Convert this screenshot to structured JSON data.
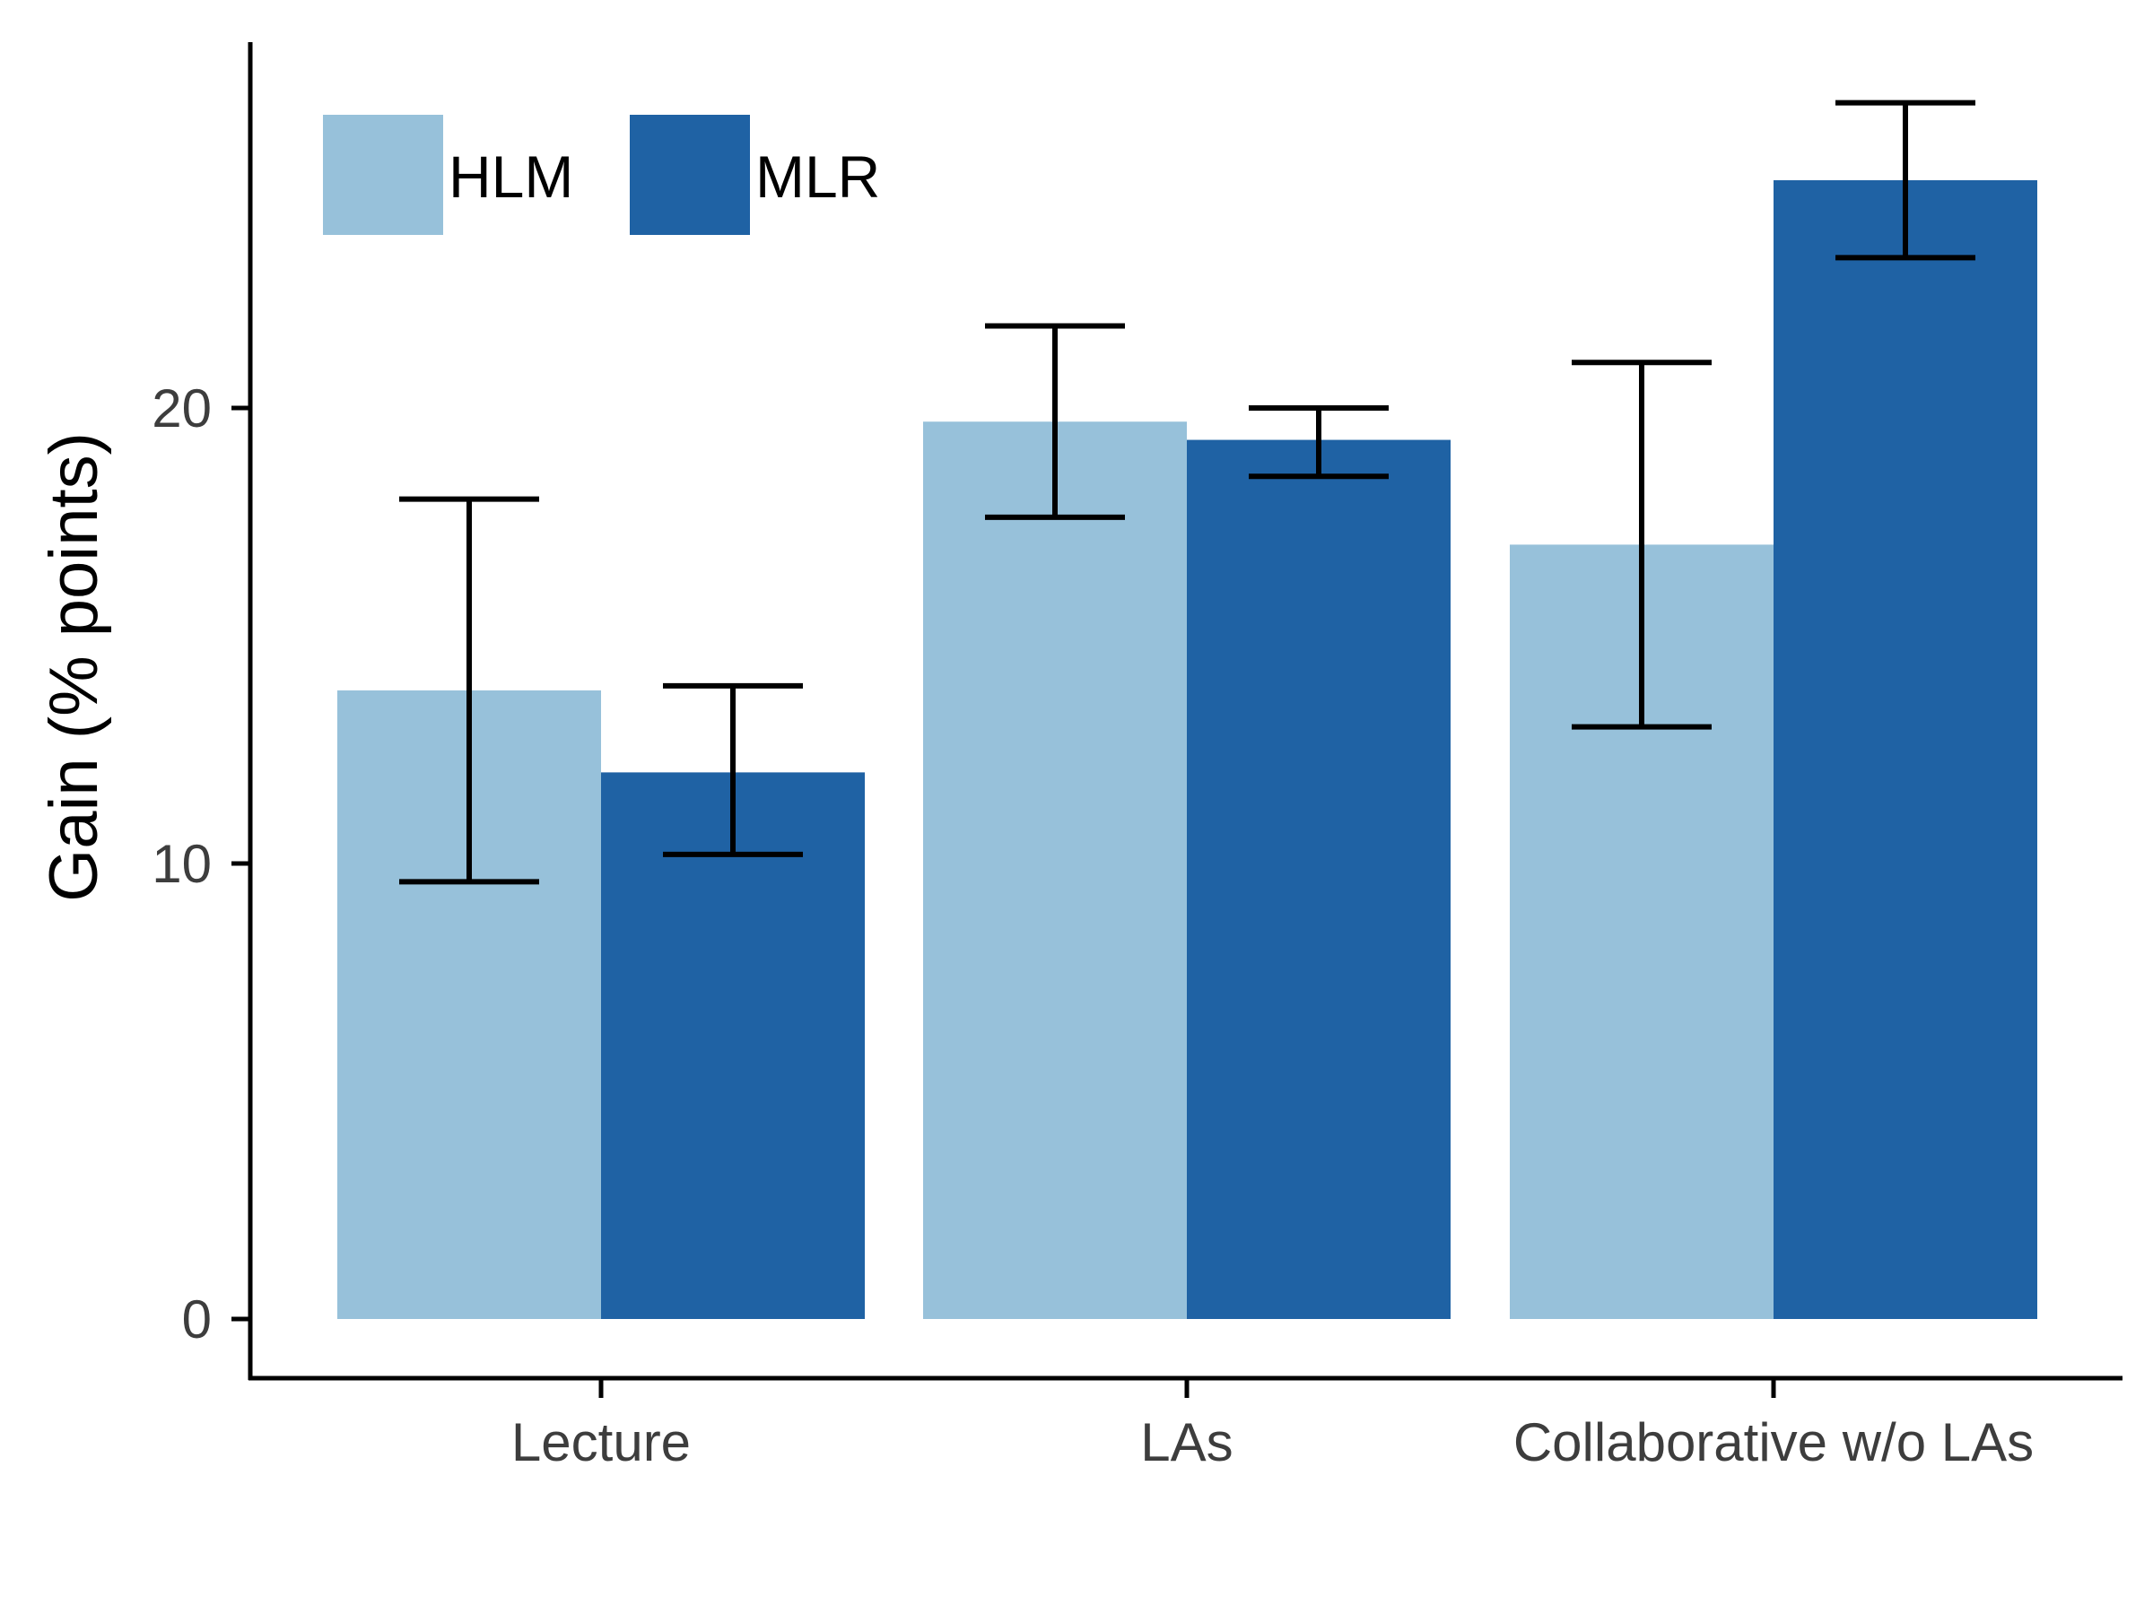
{
  "chart_data": {
    "type": "bar",
    "title": "",
    "xlabel": "",
    "ylabel": "Gain (% points)",
    "ylim": [
      -1.3,
      28.5
    ],
    "yticks": [
      0,
      10,
      20
    ],
    "grid": false,
    "legend_position": "top-left",
    "categories": [
      "Lecture",
      "LAs",
      "Collaborative w/o LAs"
    ],
    "series": [
      {
        "name": "HLM",
        "color": "#97c1da",
        "values": [
          13.8,
          19.7,
          17.0
        ],
        "error_low": [
          9.6,
          17.6,
          13.0
        ],
        "error_high": [
          18.0,
          21.8,
          21.0
        ]
      },
      {
        "name": "MLR",
        "color": "#1f62a4",
        "values": [
          12.0,
          19.3,
          25.0
        ],
        "error_low": [
          10.2,
          18.5,
          23.3
        ],
        "error_high": [
          13.9,
          20.0,
          26.7
        ]
      }
    ]
  }
}
